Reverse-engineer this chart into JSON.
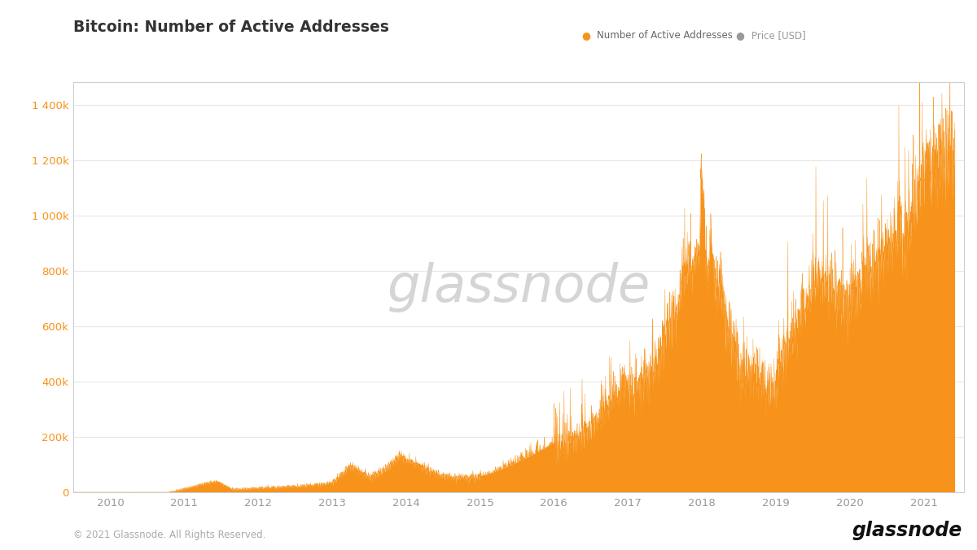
{
  "title": "Bitcoin: Number of Active Addresses",
  "legend_label1": "Number of Active Addresses",
  "legend_label2": "Price [USD]",
  "area_color": "#F7931A",
  "area_alpha": 1.0,
  "background_color": "#ffffff",
  "plot_bg_color": "#ffffff",
  "grid_color": "#e8e8e8",
  "ytick_color": "#F7931A",
  "xtick_color": "#999999",
  "watermark_text": "glassnode",
  "watermark_color": "#d5d5d5",
  "footer_left": "© 2021 Glassnode. All Rights Reserved.",
  "footer_right": "glassnode",
  "footer_color": "#aaaaaa",
  "footer_right_color": "#111111",
  "year_start": 2009.5,
  "year_end": 2021.55,
  "ytick_labels": [
    "0",
    "200k",
    "400k",
    "600k",
    "800k",
    "1 000k",
    "1 200k",
    "1 400k"
  ],
  "ytick_values": [
    0,
    200000,
    400000,
    600000,
    800000,
    1000000,
    1200000,
    1400000
  ],
  "ylim": [
    0,
    1480000
  ],
  "xtick_years": [
    2010,
    2011,
    2012,
    2013,
    2014,
    2015,
    2016,
    2017,
    2018,
    2019,
    2020,
    2021
  ],
  "title_fontsize": 14,
  "title_color": "#333333",
  "legend_dot_color_1": "#F7931A",
  "legend_dot_color_2": "#999999"
}
